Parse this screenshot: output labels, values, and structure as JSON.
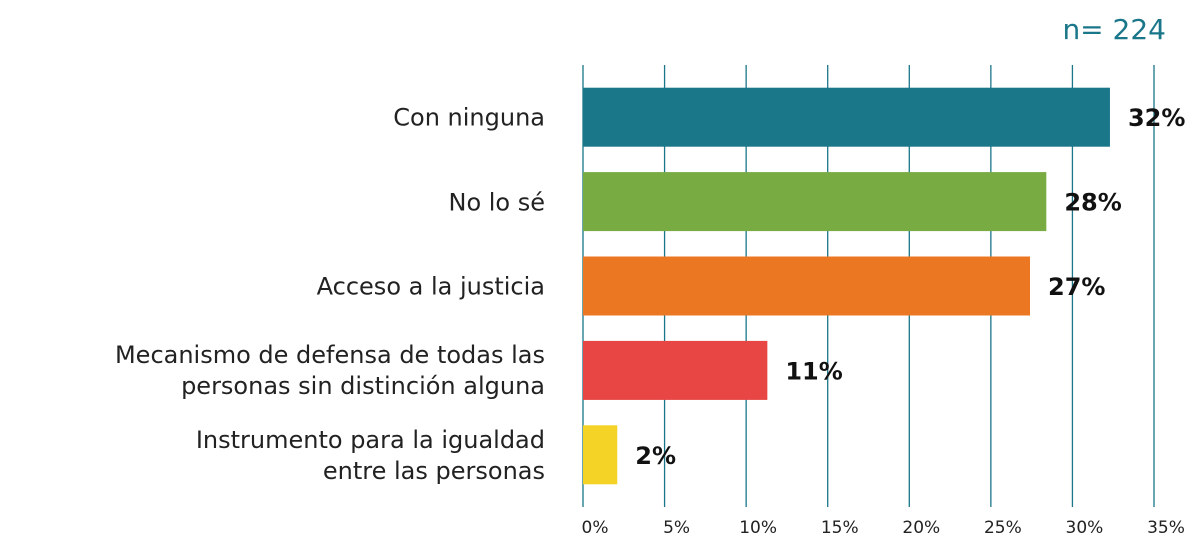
{
  "chart_data": {
    "type": "bar",
    "orientation": "horizontal",
    "annotation": "n= 224",
    "categories": [
      "Con ninguna",
      "No lo sé",
      "Acceso a la justicia",
      "Mecanismo de defensa de todas las\npersonas sin distinción alguna",
      "Instrumento para la igualdad\nentre las personas"
    ],
    "values": [
      32.3,
      28.4,
      27.4,
      11.3,
      2.1
    ],
    "value_labels": [
      "32%",
      "28%",
      "27%",
      "11%",
      "2%"
    ],
    "colors": [
      "#1a7689",
      "#78ab42",
      "#ec7723",
      "#e84644",
      "#f5d326"
    ],
    "xlim": [
      0,
      35
    ],
    "xticks": [
      {
        "value": 0,
        "label": "0%"
      },
      {
        "value": 5,
        "label": "5%"
      },
      {
        "value": 10,
        "label": "10%"
      },
      {
        "value": 15,
        "label": "15%"
      },
      {
        "value": 20,
        "label": "20%"
      },
      {
        "value": 25,
        "label": "25%"
      },
      {
        "value": 30,
        "label": "30%"
      },
      {
        "value": 35,
        "label": "35%"
      }
    ],
    "grid": true
  }
}
